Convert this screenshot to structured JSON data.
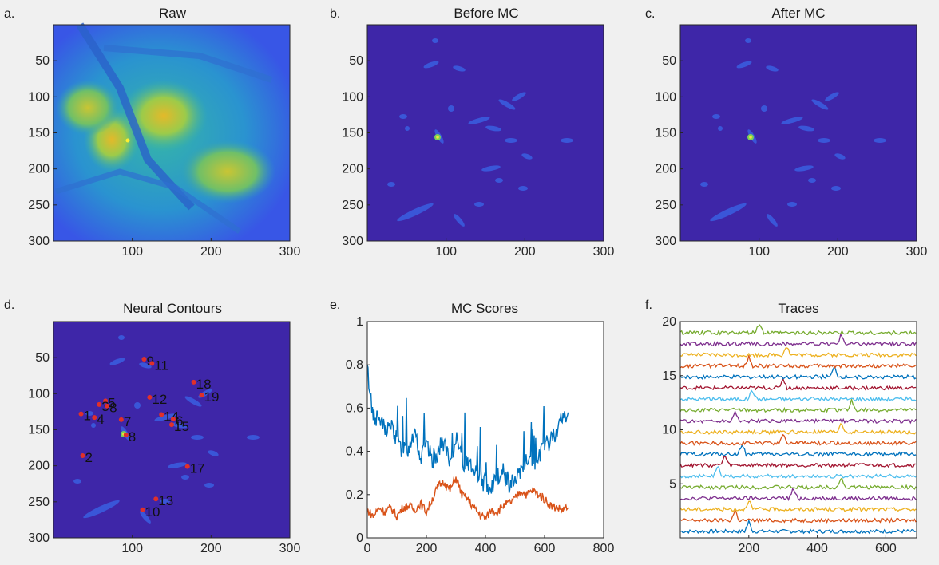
{
  "chart_data": [
    {
      "panel_label": "a.",
      "title": "Raw",
      "type": "heatmap",
      "colormap": "parula",
      "xticks": [
        "100",
        "200",
        "300"
      ],
      "yticks": [
        "50",
        "100",
        "150",
        "200",
        "250",
        "300"
      ],
      "xlim": [
        0,
        300
      ],
      "ylim": [
        0,
        300
      ]
    },
    {
      "panel_label": "b.",
      "title": "Before MC",
      "type": "heatmap",
      "colormap": "parula",
      "xticks": [
        "100",
        "200",
        "300"
      ],
      "yticks": [
        "50",
        "100",
        "150",
        "200",
        "250",
        "300"
      ],
      "xlim": [
        0,
        300
      ],
      "ylim": [
        0,
        300
      ]
    },
    {
      "panel_label": "c.",
      "title": "After MC",
      "type": "heatmap",
      "colormap": "parula",
      "xticks": [
        "100",
        "200",
        "300"
      ],
      "yticks": [
        "50",
        "100",
        "150",
        "200",
        "250",
        "300"
      ],
      "xlim": [
        0,
        300
      ],
      "ylim": [
        0,
        300
      ]
    },
    {
      "panel_label": "d.",
      "title": "Neural Contours",
      "type": "heatmap",
      "colormap": "parula",
      "xticks": [
        "100",
        "200",
        "300"
      ],
      "yticks": [
        "50",
        "100",
        "150",
        "200",
        "250",
        "300"
      ],
      "xlim": [
        0,
        300
      ],
      "ylim": [
        0,
        300
      ],
      "contours": [
        {
          "label": "9",
          "x": 115,
          "y": 52
        },
        {
          "label": "11",
          "x": 125,
          "y": 58
        },
        {
          "label": "18",
          "x": 178,
          "y": 84
        },
        {
          "label": "19",
          "x": 188,
          "y": 102
        },
        {
          "label": "5",
          "x": 66,
          "y": 110
        },
        {
          "label": "3",
          "x": 58,
          "y": 115
        },
        {
          "label": "8",
          "x": 68,
          "y": 117
        },
        {
          "label": "12",
          "x": 122,
          "y": 105
        },
        {
          "label": "1",
          "x": 35,
          "y": 128
        },
        {
          "label": "4",
          "x": 52,
          "y": 133
        },
        {
          "label": "7",
          "x": 86,
          "y": 136
        },
        {
          "label": "14",
          "x": 137,
          "y": 129
        },
        {
          "label": "6",
          "x": 152,
          "y": 135
        },
        {
          "label": "15",
          "x": 150,
          "y": 143
        },
        {
          "label": "8",
          "x": 92,
          "y": 157
        },
        {
          "label": "2",
          "x": 37,
          "y": 186
        },
        {
          "label": "17",
          "x": 170,
          "y": 201
        },
        {
          "label": "13",
          "x": 130,
          "y": 246
        },
        {
          "label": "10",
          "x": 113,
          "y": 261
        }
      ]
    },
    {
      "panel_label": "e.",
      "title": "MC Scores",
      "type": "line",
      "xticks": [
        "0",
        "200",
        "400",
        "600",
        "800"
      ],
      "yticks": [
        "0",
        "0.2",
        "0.4",
        "0.6",
        "0.8",
        "1"
      ],
      "xlim": [
        0,
        800
      ],
      "ylim": [
        0,
        1
      ],
      "series": [
        {
          "color": "#0072bd",
          "x": [
            0,
            20,
            40,
            60,
            80,
            100,
            120,
            140,
            160,
            180,
            200,
            220,
            240,
            260,
            280,
            300,
            320,
            340,
            360,
            380,
            400,
            420,
            440,
            460,
            480,
            500,
            520,
            540,
            560,
            580,
            600,
            620,
            640,
            660,
            680
          ],
          "y": [
            0.78,
            0.56,
            0.55,
            0.5,
            0.52,
            0.45,
            0.4,
            0.42,
            0.5,
            0.38,
            0.42,
            0.36,
            0.4,
            0.45,
            0.32,
            0.48,
            0.34,
            0.35,
            0.3,
            0.28,
            0.25,
            0.24,
            0.28,
            0.3,
            0.25,
            0.26,
            0.3,
            0.35,
            0.32,
            0.38,
            0.42,
            0.45,
            0.5,
            0.55,
            0.58
          ]
        },
        {
          "color": "#d95319",
          "x": [
            0,
            20,
            40,
            60,
            80,
            100,
            120,
            140,
            160,
            180,
            200,
            220,
            240,
            260,
            280,
            300,
            320,
            340,
            360,
            380,
            400,
            420,
            440,
            460,
            480,
            500,
            520,
            540,
            560,
            580,
            600,
            620,
            640,
            660,
            680
          ],
          "y": [
            0.13,
            0.1,
            0.14,
            0.12,
            0.14,
            0.1,
            0.14,
            0.15,
            0.13,
            0.16,
            0.12,
            0.18,
            0.24,
            0.26,
            0.22,
            0.28,
            0.2,
            0.18,
            0.14,
            0.11,
            0.09,
            0.13,
            0.12,
            0.15,
            0.16,
            0.18,
            0.22,
            0.2,
            0.22,
            0.2,
            0.18,
            0.15,
            0.14,
            0.13,
            0.14
          ]
        }
      ]
    },
    {
      "panel_label": "f.",
      "title": "Traces",
      "type": "line",
      "xticks": [
        "200",
        "400",
        "600"
      ],
      "yticks": [
        "5",
        "10",
        "15",
        "20"
      ],
      "xlim": [
        0,
        690
      ],
      "ylim": [
        0,
        20
      ],
      "series_count": 19,
      "series_colors": [
        "#0072bd",
        "#d95319",
        "#edb120",
        "#7e2f8e",
        "#77ac30",
        "#4dbeee",
        "#a2142f"
      ]
    }
  ]
}
